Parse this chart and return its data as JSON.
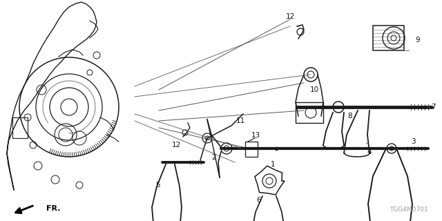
{
  "bg_color": "#ffffff",
  "diagram_color": "#1a1a1a",
  "fig_width": 6.4,
  "fig_height": 3.2,
  "dpi": 100,
  "watermark": "TGG4M0701",
  "label_color": "#111111",
  "leader_color": "#555555"
}
